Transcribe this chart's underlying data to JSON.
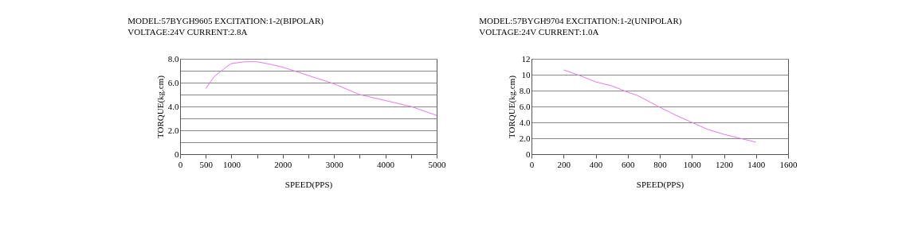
{
  "chart_data": [
    {
      "type": "line",
      "title": "MODEL:57BYGH9605  EXCITATION:1-2(BIPOLAR)",
      "subtitle": "VOLTAGE:24V            CURRENT:2.8A",
      "xlabel": "SPEED(PPS)",
      "ylabel": "TORQUE(kg.cm)",
      "x": [
        500,
        663,
        896,
        1000,
        1250,
        1500,
        1750,
        2000,
        2250,
        2500,
        3000,
        3500,
        4000,
        4500,
        5000
      ],
      "series": [
        {
          "color": "#e878e8",
          "values": [
            5.5,
            6.5,
            7.3,
            7.6,
            7.75,
            7.75,
            7.55,
            7.3,
            6.95,
            6.6,
            5.9,
            5.0,
            4.5,
            4.0,
            3.25
          ]
        }
      ],
      "xlim": [
        0,
        5000
      ],
      "ylim": [
        0,
        8
      ],
      "xticks": [
        0,
        500,
        1000,
        {
          "value": 1500,
          "label": null
        },
        2000,
        {
          "value": 2500,
          "label": null
        },
        3000,
        {
          "value": 3500,
          "label": null
        },
        4000,
        {
          "value": 4500,
          "label": null
        },
        5000
      ],
      "yticks": [
        0,
        {
          "value": 1,
          "label": null
        },
        {
          "value": 2,
          "label": "2.0"
        },
        {
          "value": 3,
          "label": null
        },
        {
          "value": 4,
          "label": "4.0"
        },
        {
          "value": 5,
          "label": null
        },
        {
          "value": 6,
          "label": "6.0"
        },
        {
          "value": 7,
          "label": null
        },
        {
          "value": 8,
          "label": "8.0"
        }
      ],
      "grid": "y",
      "marker": "none",
      "line_style": "solid"
    },
    {
      "type": "line",
      "title": "MODEL:57BYGH9704  EXCITATION:1-2(UNIPOLAR)",
      "subtitle": "VOLTAGE:24V            CURRENT:1.0A",
      "xlabel": "SPEED(PPS)",
      "ylabel": "TORQUE(kg.cm)",
      "x": [
        200,
        300,
        400,
        500,
        600,
        660,
        800,
        900,
        1000,
        1100,
        1200,
        1300,
        1400
      ],
      "series": [
        {
          "color": "#e878e8",
          "values": [
            10.6,
            9.9,
            9.1,
            8.6,
            7.8,
            7.4,
            5.9,
            4.9,
            4.0,
            3.1,
            2.5,
            2.0,
            1.5
          ]
        }
      ],
      "xlim": [
        0,
        1600
      ],
      "ylim": [
        0,
        12
      ],
      "xticks": [
        0,
        200,
        400,
        600,
        800,
        1000,
        1200,
        1400,
        1600
      ],
      "yticks": [
        0,
        {
          "value": 2,
          "label": "2.0"
        },
        {
          "value": 4,
          "label": "4.0"
        },
        {
          "value": 6,
          "label": "6.0"
        },
        {
          "value": 8,
          "label": "8.0"
        },
        10,
        12
      ],
      "grid": "y",
      "marker": "none",
      "line_style": "solid"
    }
  ]
}
